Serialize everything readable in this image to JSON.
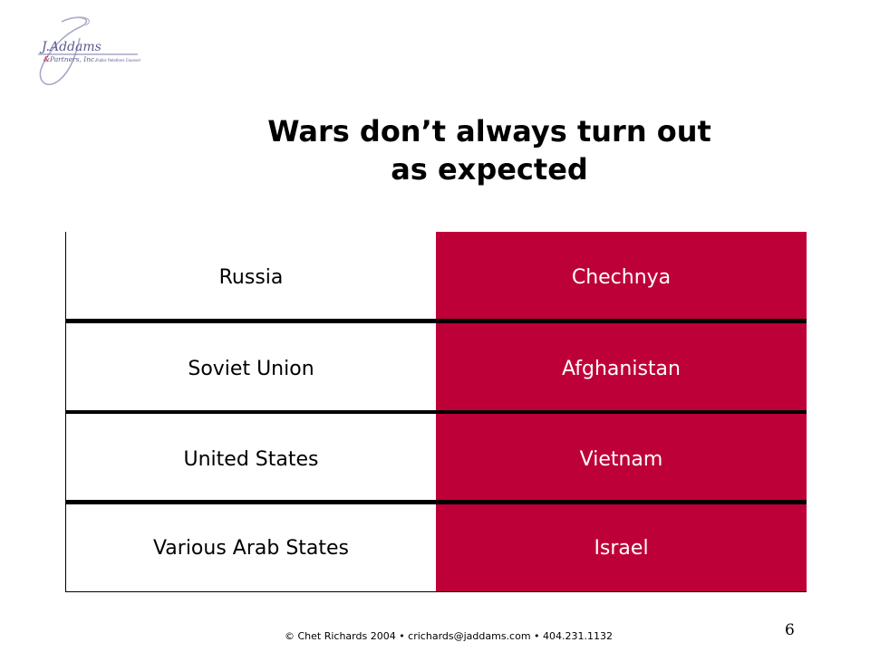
{
  "logo": {
    "name_line1": "J.Addams",
    "name_line2": "& Partners, Inc.",
    "tagline": "Public Relations Counsel"
  },
  "slide": {
    "title_line1": "Wars don’t always turn out",
    "title_line2": "as expected"
  },
  "table": {
    "rows": [
      {
        "country": "Russia",
        "war": "Chechnya"
      },
      {
        "country": "Soviet Union",
        "war": "Afghanistan"
      },
      {
        "country": "United States",
        "war": "Vietnam"
      },
      {
        "country": "Various Arab States",
        "war": "Israel"
      }
    ],
    "accent_color": "#BE0038"
  },
  "footer": {
    "text": "© Chet Richards 2004 • crichards@jaddams.com • 404.231.1132",
    "page_number": "6"
  }
}
